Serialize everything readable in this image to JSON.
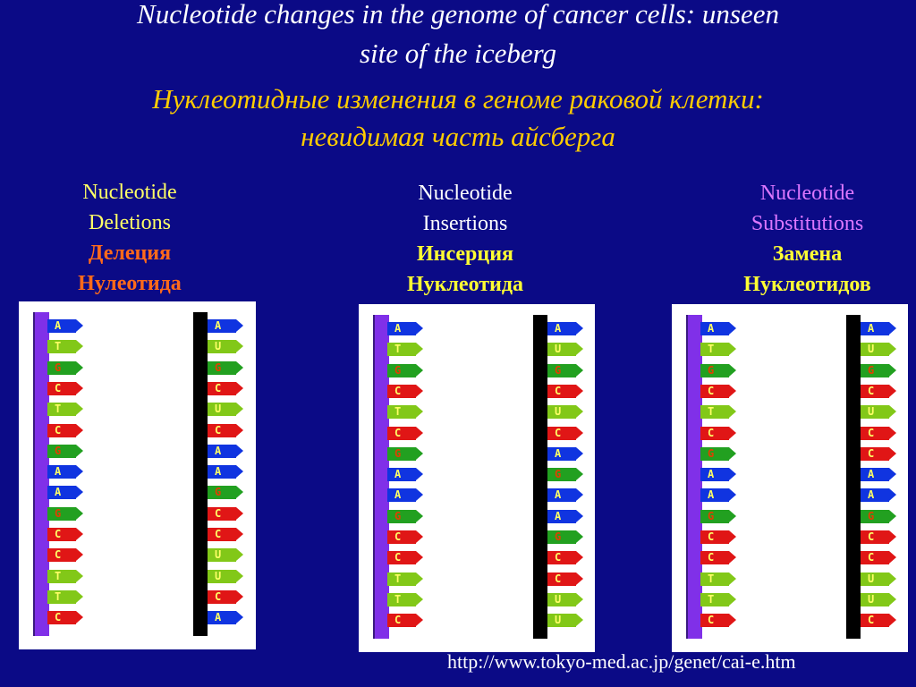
{
  "title": {
    "en_line1": "Nucleotide changes in the genome of cancer cells: unseen",
    "en_line2": "site of the iceberg",
    "ru_line1": "Нуклеотидные изменения в геноме раковой клетки:",
    "ru_line2": "невидимая часть айсберга"
  },
  "columns": [
    {
      "en1": "Nucleotide",
      "en2": "Deletions",
      "ru1": "Делеция",
      "ru2": "Нулеотида"
    },
    {
      "en1": "Nucleotide",
      "en2": "Insertions",
      "ru1": "Инсерция",
      "ru2": "Нуклеотида"
    },
    {
      "en1": "Nucleotide",
      "en2": "Substitutions",
      "ru1": "Замена",
      "ru2": "Нуклеотидов"
    }
  ],
  "panels": [
    {
      "left_strand": [
        "A",
        "T",
        "G",
        "C",
        "T",
        "C",
        "G",
        "A",
        "A",
        "G",
        "C",
        "C",
        "T",
        "T",
        "C"
      ],
      "right_strand": [
        "A",
        "U",
        "G",
        "C",
        "U",
        "C",
        "A",
        "A",
        "G",
        "C",
        "C",
        "U",
        "U",
        "C",
        "A"
      ]
    },
    {
      "left_strand": [
        "A",
        "T",
        "G",
        "C",
        "T",
        "C",
        "G",
        "A",
        "A",
        "G",
        "C",
        "C",
        "T",
        "T",
        "C"
      ],
      "right_strand": [
        "A",
        "U",
        "G",
        "C",
        "U",
        "C",
        "A",
        "G",
        "A",
        "A",
        "G",
        "C",
        "C",
        "U",
        "U"
      ]
    },
    {
      "left_strand": [
        "A",
        "T",
        "G",
        "C",
        "T",
        "C",
        "G",
        "A",
        "A",
        "G",
        "C",
        "C",
        "T",
        "T",
        "C"
      ],
      "right_strand": [
        "A",
        "U",
        "G",
        "C",
        "U",
        "C",
        "C",
        "A",
        "A",
        "G",
        "C",
        "C",
        "U",
        "U",
        "C"
      ]
    }
  ],
  "base_colors": {
    "A": "#1034e0",
    "T": "#82c818",
    "U": "#82c818",
    "G": "#22a020",
    "C": "#e01616"
  },
  "source_url": "http://www.tokyo-med.ac.jp/genet/cai-e.htm"
}
